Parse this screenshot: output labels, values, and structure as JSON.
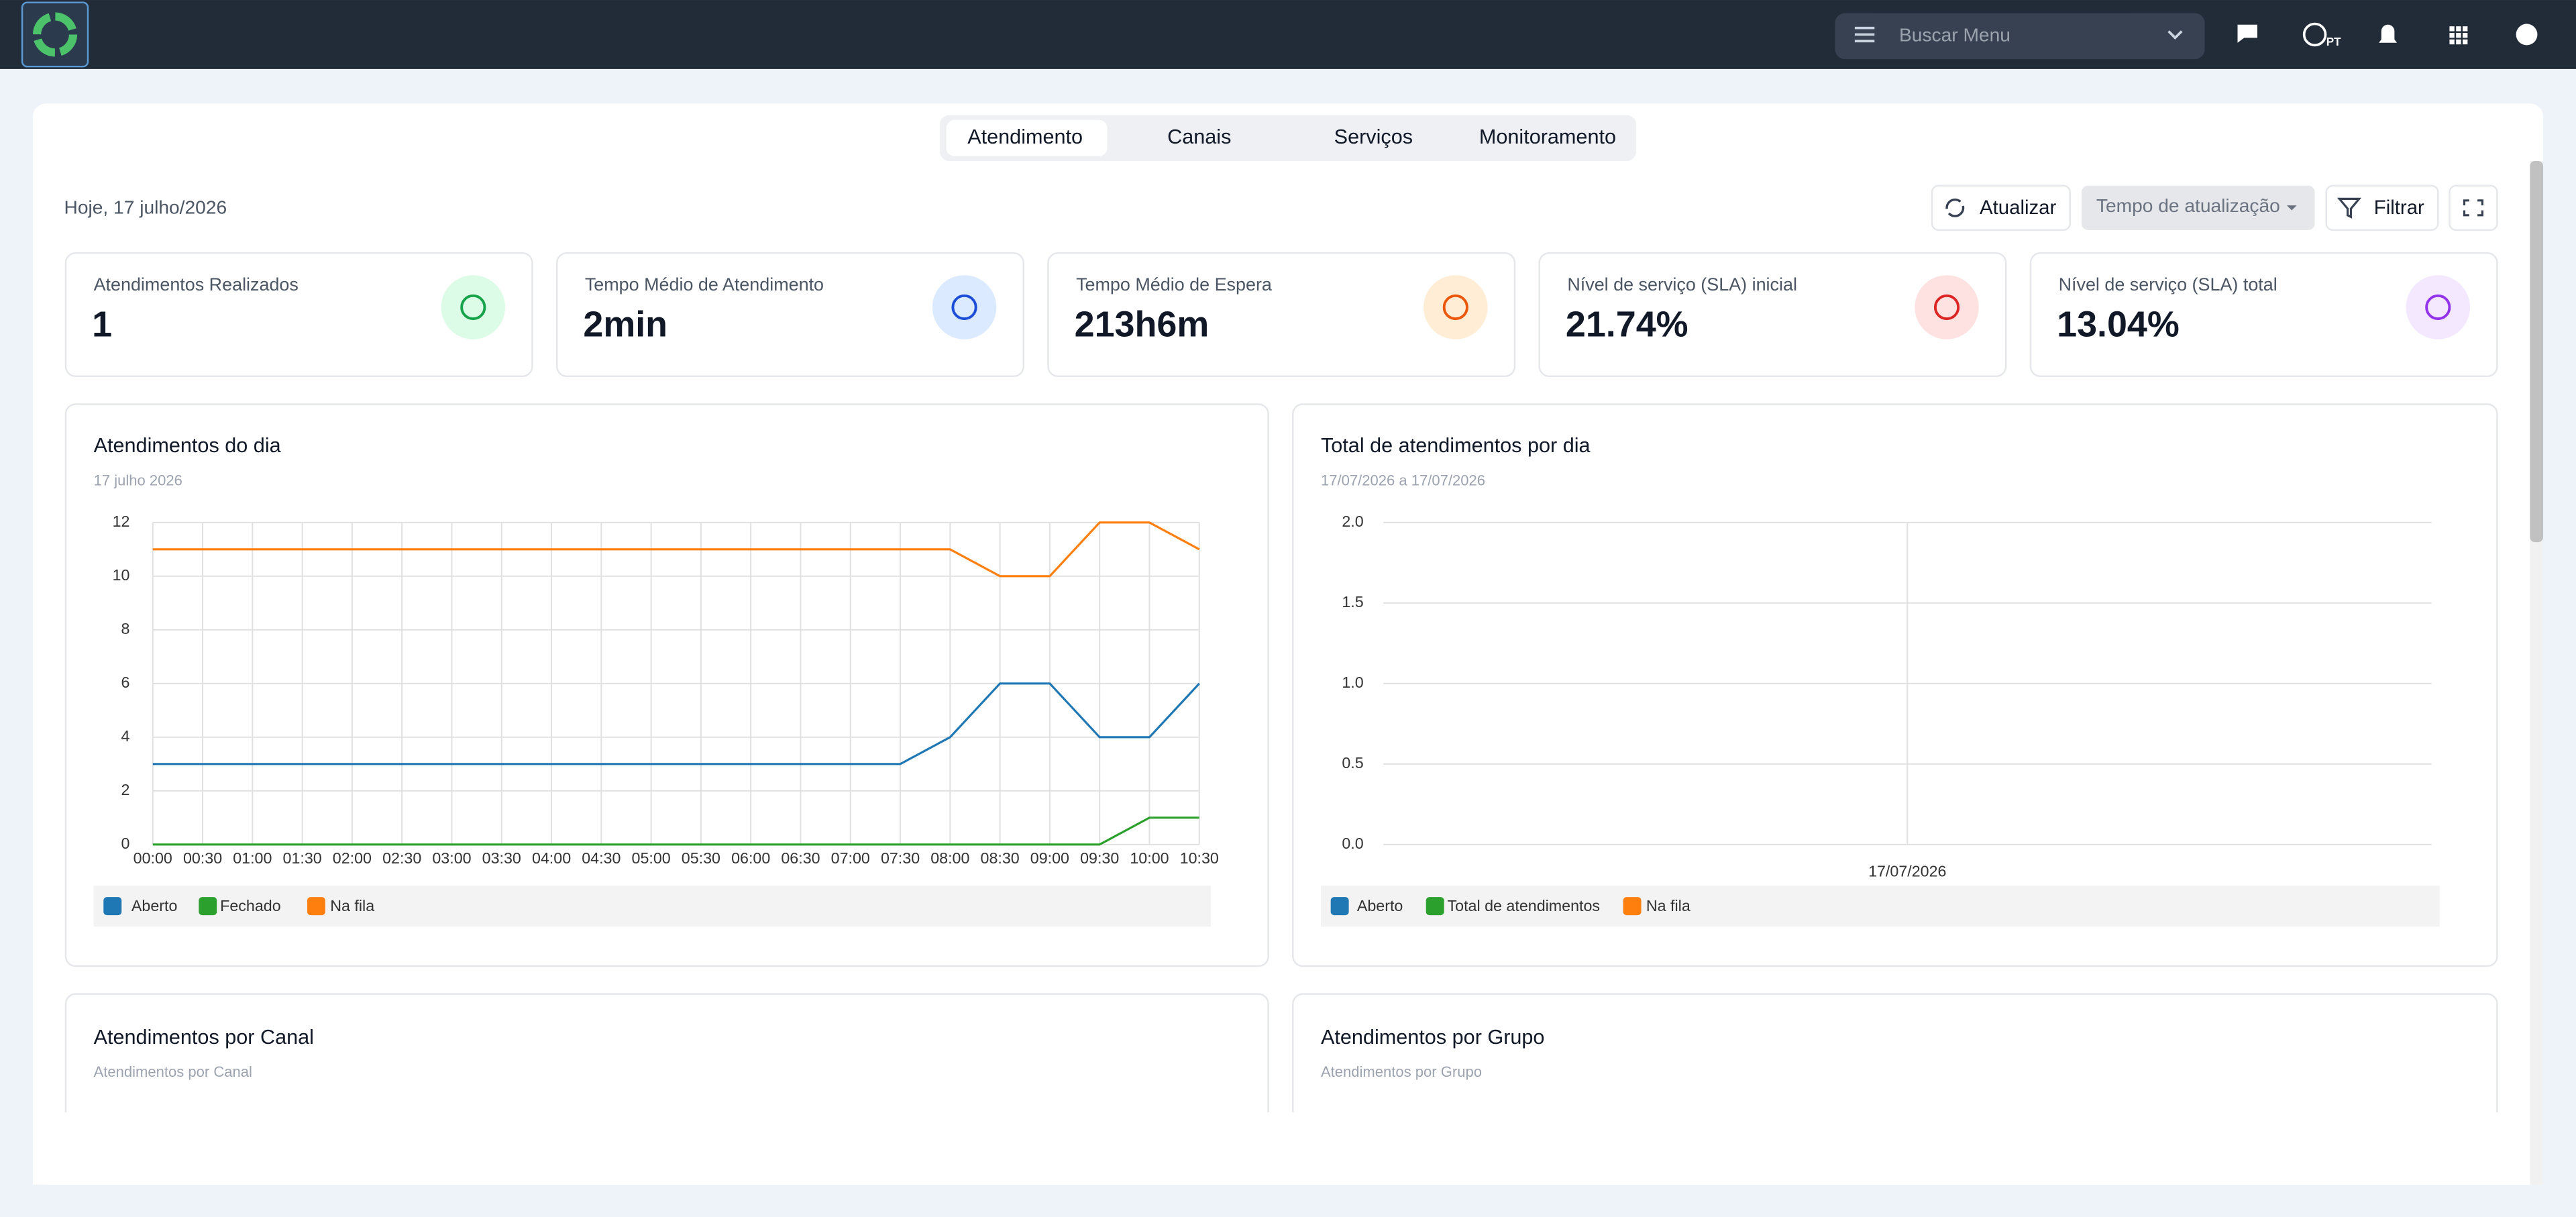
{
  "header": {
    "search_placeholder": "Buscar Menu",
    "language": "PT"
  },
  "tabs": [
    "Atendimento",
    "Canais",
    "Serviços",
    "Monitoramento"
  ],
  "date": "Hoje, 17 julho/2026",
  "toolbar": {
    "refresh": "Atualizar",
    "refresh_interval": "Tempo de atualização",
    "filter": "Filtrar"
  },
  "kpis": [
    {
      "label": "Atendimentos Realizados",
      "value": "1"
    },
    {
      "label": "Tempo Médio de Atendimento",
      "value": "2min"
    },
    {
      "label": "Tempo Médio de Espera",
      "value": "213h6m"
    },
    {
      "label": "Nível de serviço (SLA) inicial",
      "value": "21.74%"
    },
    {
      "label": "Nível de serviço (SLA) total",
      "value": "13.04%"
    }
  ],
  "charts": [
    {
      "type": "line",
      "title": "Atendimentos do dia",
      "subtitle": "17 julho 2026",
      "categories": [
        "00:00",
        "00:30",
        "01:00",
        "01:30",
        "02:00",
        "02:30",
        "03:00",
        "03:30",
        "04:00",
        "04:30",
        "05:00",
        "05:30",
        "06:00",
        "06:30",
        "07:00",
        "07:30",
        "08:00",
        "08:30",
        "09:00",
        "09:30",
        "10:00",
        "10:30"
      ],
      "series": [
        {
          "name": "Aberto",
          "color": "#1f77b4",
          "values": [
            3,
            3,
            3,
            3,
            3,
            3,
            3,
            3,
            3,
            3,
            3,
            3,
            3,
            3,
            3,
            3,
            4,
            6,
            6,
            4,
            4,
            6
          ]
        },
        {
          "name": "Fechado",
          "color": "#2ca02c",
          "values": [
            0,
            0,
            0,
            0,
            0,
            0,
            0,
            0,
            0,
            0,
            0,
            0,
            0,
            0,
            0,
            0,
            0,
            0,
            0,
            0,
            1,
            1
          ]
        },
        {
          "name": "Na fila",
          "color": "#ff7f0e",
          "values": [
            11,
            11,
            11,
            11,
            11,
            11,
            11,
            11,
            11,
            11,
            11,
            11,
            11,
            11,
            11,
            11,
            11,
            10,
            10,
            12,
            12,
            11
          ]
        }
      ],
      "ylim": [
        0,
        12
      ],
      "yticks": [
        0,
        2,
        4,
        6,
        8,
        10,
        12
      ],
      "grid": true
    },
    {
      "type": "line",
      "title": "Total de atendimentos por dia",
      "subtitle": "17/07/2026 a 17/07/2026",
      "categories": [
        "17/07/2026"
      ],
      "series": [
        {
          "name": "Aberto",
          "color": "#1f77b4",
          "values": [
            null
          ]
        },
        {
          "name": "Total de atendimentos",
          "color": "#2ca02c",
          "values": [
            null
          ]
        },
        {
          "name": "Na fila",
          "color": "#ff7f0e",
          "values": [
            null
          ]
        }
      ],
      "ylim": [
        0,
        2
      ],
      "yticks": [
        {
          "value": 0,
          "label": "0.0"
        },
        0.5,
        {
          "value": 1,
          "label": "1.0"
        },
        1.5,
        {
          "value": 2,
          "label": "2.0"
        }
      ],
      "grid": true
    }
  ],
  "panels": [
    {
      "title": "Atendimentos por Canal",
      "subtitle": "Atendimentos por Canal"
    },
    {
      "title": "Atendimentos por Grupo",
      "subtitle": "Atendimentos por Grupo"
    }
  ]
}
